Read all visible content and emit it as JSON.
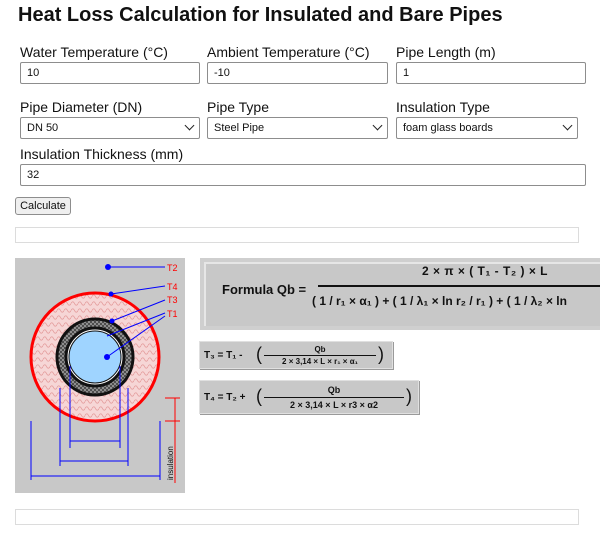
{
  "page": {
    "title": "Heat Loss Calculation for Insulated and Bare Pipes"
  },
  "form": {
    "water_temp": {
      "label": "Water Temperature (°C)",
      "value": "10"
    },
    "ambient_temp": {
      "label": "Ambient Temperature (°C)",
      "value": "-10"
    },
    "pipe_length": {
      "label": "Pipe Length (m)",
      "value": "1"
    },
    "pipe_diameter": {
      "label": "Pipe Diameter (DN)",
      "value": "DN 50"
    },
    "pipe_type": {
      "label": "Pipe Type",
      "value": "Steel Pipe"
    },
    "insulation_type": {
      "label": "Insulation Type",
      "value": "foam glass boards"
    },
    "insulation_thickness": {
      "label": "Insulation Thickness (mm)",
      "value": "32"
    },
    "calculate_label": "Calculate"
  },
  "diagram": {
    "labels": {
      "t2": "T2",
      "t4": "T4",
      "t3": "T3",
      "t1": "T1",
      "insulation": "insulation"
    },
    "colors": {
      "background": "#c8c8c8",
      "outer_ring": "#ff0000",
      "hatch": "#f3c9c9",
      "jacket": "#111111",
      "pipe": "#9fd4ff",
      "lines": "#0000ff"
    }
  },
  "formulas": {
    "main": {
      "label": "Formula Qb =",
      "numerator": "2 ×  π × ( T₁ - T₂ ) × L",
      "denominator": "( 1 / r₁ × α₁ ) + ( 1 / λ₁ × ln r₂ / r₁ ) + ( 1 / λ₂ × ln"
    },
    "t3": {
      "lhs": "T₃ = T₁ -",
      "num": "Qb",
      "den": "2 × 3,14 × L × r₁ × α₁"
    },
    "t4": {
      "lhs": "T₄ = T₂ +",
      "num": "Qb",
      "den": "2 × 3,14 × L × r3 × α2"
    }
  }
}
